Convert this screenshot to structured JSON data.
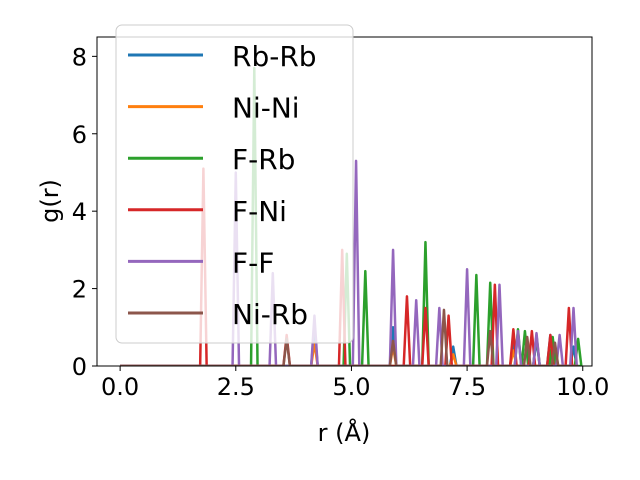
{
  "chart_data": {
    "type": "line",
    "xlabel": "r (Å)",
    "ylabel": "g(r)",
    "xlim": [
      -0.5,
      10.2
    ],
    "ylim": [
      0,
      8.5
    ],
    "xticks": [
      0.0,
      2.5,
      5.0,
      7.5,
      10.0
    ],
    "xtick_labels": [
      "0.0",
      "2.5",
      "5.0",
      "7.5",
      "10.0"
    ],
    "yticks": [
      0,
      2,
      4,
      6,
      8
    ],
    "ytick_labels": [
      "0",
      "2",
      "4",
      "6",
      "8"
    ],
    "legend_position": "top-left",
    "grid": false,
    "series": [
      {
        "name": "Rb-Rb",
        "color": "#1f77b4",
        "peaks": [
          [
            4.2,
            1.0
          ],
          [
            5.9,
            1.0
          ],
          [
            7.2,
            0.5
          ],
          [
            8.5,
            0.6
          ],
          [
            9.0,
            0.7
          ],
          [
            9.3,
            0.8
          ],
          [
            9.8,
            0.5
          ]
        ]
      },
      {
        "name": "Ni-Ni",
        "color": "#ff7f0e",
        "peaks": [
          [
            4.2,
            0.6
          ],
          [
            5.9,
            0.5
          ],
          [
            7.2,
            0.3
          ],
          [
            8.5,
            0.4
          ],
          [
            9.3,
            0.3
          ]
        ]
      },
      {
        "name": "F-Rb",
        "color": "#2ca02c",
        "peaks": [
          [
            2.9,
            7.7
          ],
          [
            4.9,
            2.9
          ],
          [
            5.3,
            2.45
          ],
          [
            6.6,
            3.2
          ],
          [
            7.7,
            2.35
          ],
          [
            8.0,
            2.15
          ],
          [
            8.6,
            0.95
          ],
          [
            8.75,
            0.9
          ],
          [
            9.0,
            0.8
          ],
          [
            9.35,
            0.75
          ],
          [
            9.9,
            0.7
          ]
        ]
      },
      {
        "name": "F-Ni",
        "color": "#d62728",
        "peaks": [
          [
            1.8,
            5.1
          ],
          [
            3.6,
            0.8
          ],
          [
            4.8,
            3.0
          ],
          [
            6.2,
            1.8
          ],
          [
            6.6,
            1.5
          ],
          [
            7.1,
            1.3
          ],
          [
            8.1,
            2.1
          ],
          [
            8.5,
            0.95
          ],
          [
            8.9,
            0.9
          ],
          [
            9.3,
            0.8
          ],
          [
            9.7,
            1.5
          ]
        ]
      },
      {
        "name": "F-F",
        "color": "#9467bd",
        "peaks": [
          [
            2.5,
            5.0
          ],
          [
            3.3,
            2.4
          ],
          [
            4.2,
            1.3
          ],
          [
            5.1,
            5.3
          ],
          [
            5.9,
            3.0
          ],
          [
            6.4,
            1.7
          ],
          [
            6.9,
            1.5
          ],
          [
            7.5,
            2.5
          ],
          [
            8.2,
            2.1
          ],
          [
            8.6,
            0.9
          ],
          [
            9.0,
            0.85
          ],
          [
            9.5,
            0.8
          ],
          [
            9.8,
            1.5
          ]
        ]
      },
      {
        "name": "Ni-Rb",
        "color": "#8c564b",
        "peaks": [
          [
            3.6,
            0.7
          ],
          [
            5.9,
            0.65
          ],
          [
            7.0,
            1.45
          ],
          [
            8.0,
            0.9
          ],
          [
            8.8,
            0.75
          ],
          [
            9.4,
            0.6
          ]
        ]
      }
    ]
  }
}
